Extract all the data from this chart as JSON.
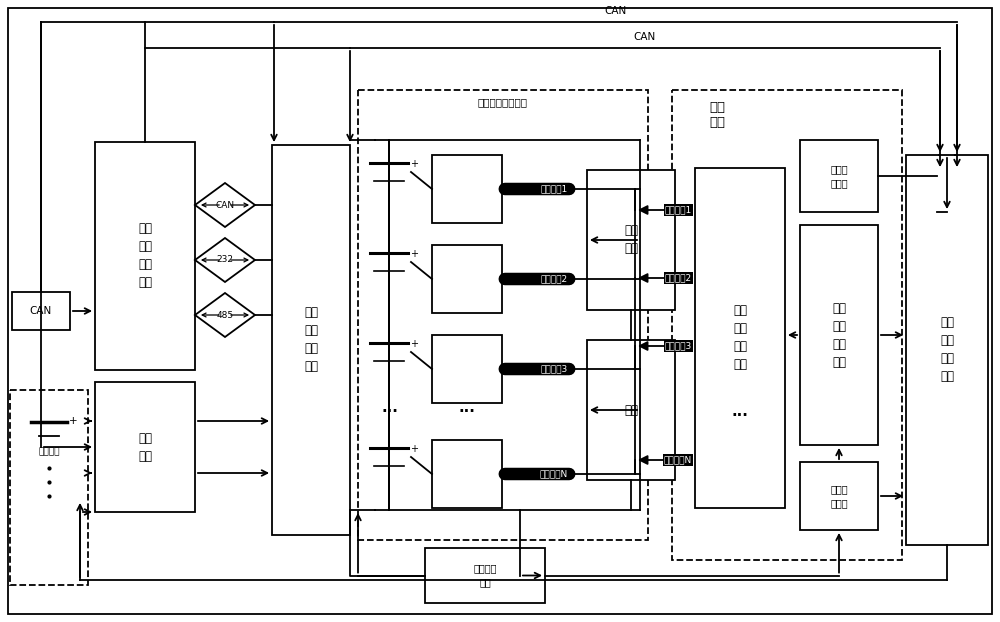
{
  "bg": "#ffffff",
  "lc": "#000000",
  "fw": 10.0,
  "fh": 6.22,
  "batt_mgmt": "单体\n电池\n管理\n模块",
  "switch_mod": "切换\n模块",
  "cell_chg": "单体\n电池\n充电\n模块",
  "filter": "滤波\n电路",
  "load": "负载",
  "drv_iso": "驱动\n信号\n隔离\n模块",
  "drv_gen": "驱动\n信号\n发生\n模块",
  "state_sw": "状态开\n关模块",
  "wf_ctrl": "波形调\n制模块",
  "batt_fault": "电池\n故障\n处理\n模块",
  "wf_fb": "波形反馈\n模块",
  "backup": "备用电池",
  "elec": "电能变换拓扑电路",
  "ctrl": "控制\n单元",
  "can": "CAN",
  "r232": "232",
  "r485": "485",
  "p1": "互补脉冲1",
  "p2": "互补脉冲2",
  "p3": "互补脉冲3",
  "pN": "互补脉冲N"
}
